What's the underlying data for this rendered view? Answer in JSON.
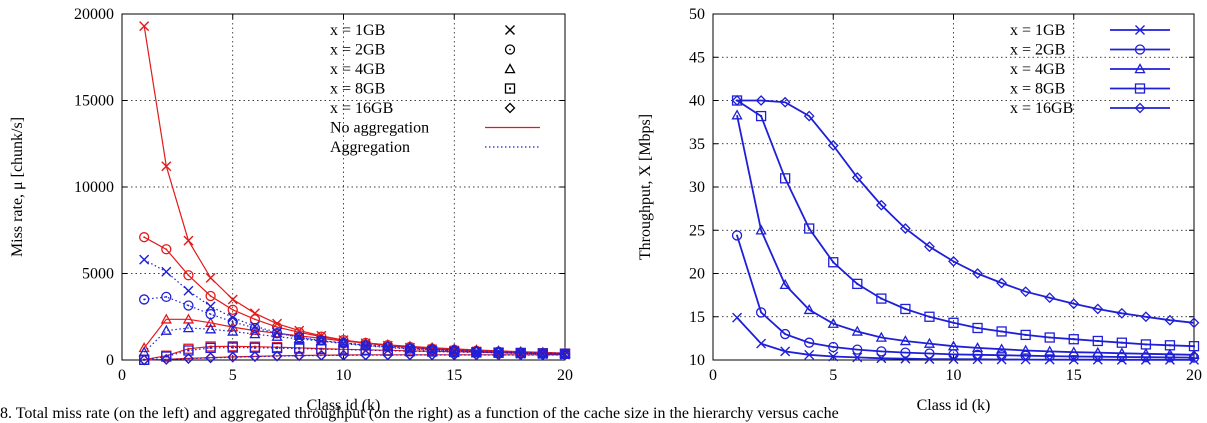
{
  "chart_data": [
    {
      "type": "line",
      "xlabel": "Class id (k)",
      "ylabel": "Miss rate, μ [chunk/s]",
      "xlim": [
        0,
        20
      ],
      "ylim": [
        0,
        20000
      ],
      "xticks": [
        "0",
        "5",
        "10",
        "15",
        "20"
      ],
      "yticks": [
        "0",
        "5000",
        "10000",
        "15000",
        "20000"
      ],
      "grid": true,
      "legend_position": "top-right",
      "legend_markers": [
        {
          "label": "x = 1GB",
          "marker": "cross"
        },
        {
          "label": "x = 2GB",
          "marker": "circle"
        },
        {
          "label": "x = 4GB",
          "marker": "triangle"
        },
        {
          "label": "x = 8GB",
          "marker": "square"
        },
        {
          "label": "x = 16GB",
          "marker": "diamond"
        }
      ],
      "legend_lines": [
        {
          "label": "No aggregation",
          "color": "#e31a1c",
          "style": "solid"
        },
        {
          "label": "Aggregation",
          "color": "#1f1fd8",
          "style": "dotted"
        }
      ],
      "x": [
        1,
        2,
        3,
        4,
        5,
        6,
        7,
        8,
        9,
        10,
        11,
        12,
        13,
        14,
        15,
        16,
        17,
        18,
        19,
        20
      ],
      "series": [
        {
          "group": "No aggregation",
          "marker": "cross",
          "color": "#e31a1c",
          "style": "solid",
          "values": [
            19300,
            11200,
            6900,
            4750,
            3500,
            2700,
            2100,
            1700,
            1400,
            1150,
            970,
            830,
            720,
            630,
            560,
            500,
            450,
            410,
            370,
            340
          ]
        },
        {
          "group": "No aggregation",
          "marker": "circle",
          "color": "#e31a1c",
          "style": "solid",
          "values": [
            7100,
            6400,
            4900,
            3700,
            2900,
            2350,
            1900,
            1600,
            1350,
            1150,
            990,
            860,
            750,
            660,
            590,
            530,
            480,
            430,
            390,
            360
          ]
        },
        {
          "group": "No aggregation",
          "marker": "triangle",
          "color": "#e31a1c",
          "style": "solid",
          "values": [
            700,
            2350,
            2350,
            2150,
            1900,
            1700,
            1550,
            1400,
            1250,
            1100,
            980,
            880,
            790,
            710,
            640,
            580,
            530,
            480,
            440,
            400
          ]
        },
        {
          "group": "No aggregation",
          "marker": "square",
          "color": "#e31a1c",
          "style": "solid",
          "values": [
            20,
            250,
            650,
            780,
            790,
            770,
            740,
            700,
            660,
            620,
            590,
            560,
            530,
            500,
            480,
            450,
            430,
            410,
            390,
            370
          ]
        },
        {
          "group": "No aggregation",
          "marker": "diamond",
          "color": "#e31a1c",
          "style": "solid",
          "values": [
            5,
            40,
            90,
            140,
            180,
            210,
            240,
            260,
            280,
            290,
            300,
            300,
            300,
            300,
            300,
            300,
            300,
            300,
            300,
            300
          ]
        },
        {
          "group": "Aggregation",
          "marker": "cross",
          "color": "#1f1fd8",
          "style": "dotted",
          "values": [
            5800,
            5100,
            4000,
            3100,
            2450,
            1950,
            1600,
            1300,
            1100,
            950,
            820,
            720,
            630,
            560,
            500,
            450,
            410,
            370,
            340,
            310
          ]
        },
        {
          "group": "Aggregation",
          "marker": "circle",
          "color": "#1f1fd8",
          "style": "dotted",
          "values": [
            3500,
            3650,
            3150,
            2650,
            2200,
            1850,
            1550,
            1320,
            1130,
            980,
            850,
            750,
            660,
            590,
            530,
            480,
            430,
            390,
            360,
            330
          ]
        },
        {
          "group": "Aggregation",
          "marker": "triangle",
          "color": "#1f1fd8",
          "style": "dotted",
          "values": [
            450,
            1700,
            1850,
            1780,
            1650,
            1500,
            1350,
            1220,
            1100,
            990,
            890,
            800,
            720,
            650,
            590,
            540,
            490,
            450,
            410,
            380
          ]
        },
        {
          "group": "Aggregation",
          "marker": "square",
          "color": "#1f1fd8",
          "style": "dotted",
          "values": [
            10,
            200,
            550,
            700,
            720,
            710,
            690,
            660,
            630,
            600,
            570,
            540,
            510,
            490,
            460,
            440,
            420,
            400,
            380,
            360
          ]
        },
        {
          "group": "Aggregation",
          "marker": "diamond",
          "color": "#1f1fd8",
          "style": "dotted",
          "values": [
            3,
            30,
            80,
            120,
            160,
            190,
            220,
            240,
            260,
            270,
            280,
            285,
            290,
            290,
            290,
            290,
            290,
            290,
            290,
            290
          ]
        }
      ]
    },
    {
      "type": "line",
      "xlabel": "Class id (k)",
      "ylabel": "Throughput, X [Mbps]",
      "xlim": [
        0,
        20
      ],
      "ylim": [
        10,
        50
      ],
      "xticks": [
        "0",
        "5",
        "10",
        "15",
        "20"
      ],
      "yticks": [
        "10",
        "15",
        "20",
        "25",
        "30",
        "35",
        "40",
        "45",
        "50"
      ],
      "grid": true,
      "legend_position": "top-right",
      "x": [
        1,
        2,
        3,
        4,
        5,
        6,
        7,
        8,
        9,
        10,
        11,
        12,
        13,
        14,
        15,
        16,
        17,
        18,
        19,
        20
      ],
      "series": [
        {
          "name": "x = 1GB",
          "marker": "cross",
          "color": "#1f1fd8",
          "values": [
            14.9,
            11.9,
            11.0,
            10.6,
            10.4,
            10.3,
            10.2,
            10.15,
            10.1,
            10.1,
            10.08,
            10.06,
            10.05,
            10.04,
            10.03,
            10.03,
            10.02,
            10.02,
            10.02,
            10.01
          ]
        },
        {
          "name": "x = 2GB",
          "marker": "circle",
          "color": "#1f1fd8",
          "values": [
            24.4,
            15.5,
            13.0,
            12.0,
            11.5,
            11.2,
            11.0,
            10.85,
            10.75,
            10.65,
            10.6,
            10.55,
            10.5,
            10.45,
            10.4,
            10.38,
            10.35,
            10.32,
            10.3,
            10.28
          ]
        },
        {
          "name": "x = 4GB",
          "marker": "triangle",
          "color": "#1f1fd8",
          "values": [
            38.3,
            25.0,
            18.7,
            15.8,
            14.2,
            13.3,
            12.6,
            12.2,
            11.9,
            11.6,
            11.4,
            11.25,
            11.1,
            11.0,
            10.9,
            10.85,
            10.78,
            10.72,
            10.66,
            10.6
          ]
        },
        {
          "name": "x = 8GB",
          "marker": "square",
          "color": "#1f1fd8",
          "values": [
            40.0,
            38.2,
            31.0,
            25.2,
            21.3,
            18.8,
            17.1,
            15.9,
            15.0,
            14.3,
            13.7,
            13.3,
            12.9,
            12.6,
            12.4,
            12.2,
            12.0,
            11.8,
            11.7,
            11.6
          ]
        },
        {
          "name": "x = 16GB",
          "marker": "diamond",
          "color": "#1f1fd8",
          "values": [
            40.0,
            40.0,
            39.8,
            38.2,
            34.8,
            31.1,
            27.9,
            25.2,
            23.1,
            21.4,
            20.0,
            18.9,
            17.9,
            17.2,
            16.5,
            15.9,
            15.4,
            15.0,
            14.6,
            14.3
          ]
        }
      ]
    }
  ],
  "caption": "8.   Total miss rate (on the left) and aggregated throughput (on the right) as a function of the cache size in the hierarchy versus cache"
}
